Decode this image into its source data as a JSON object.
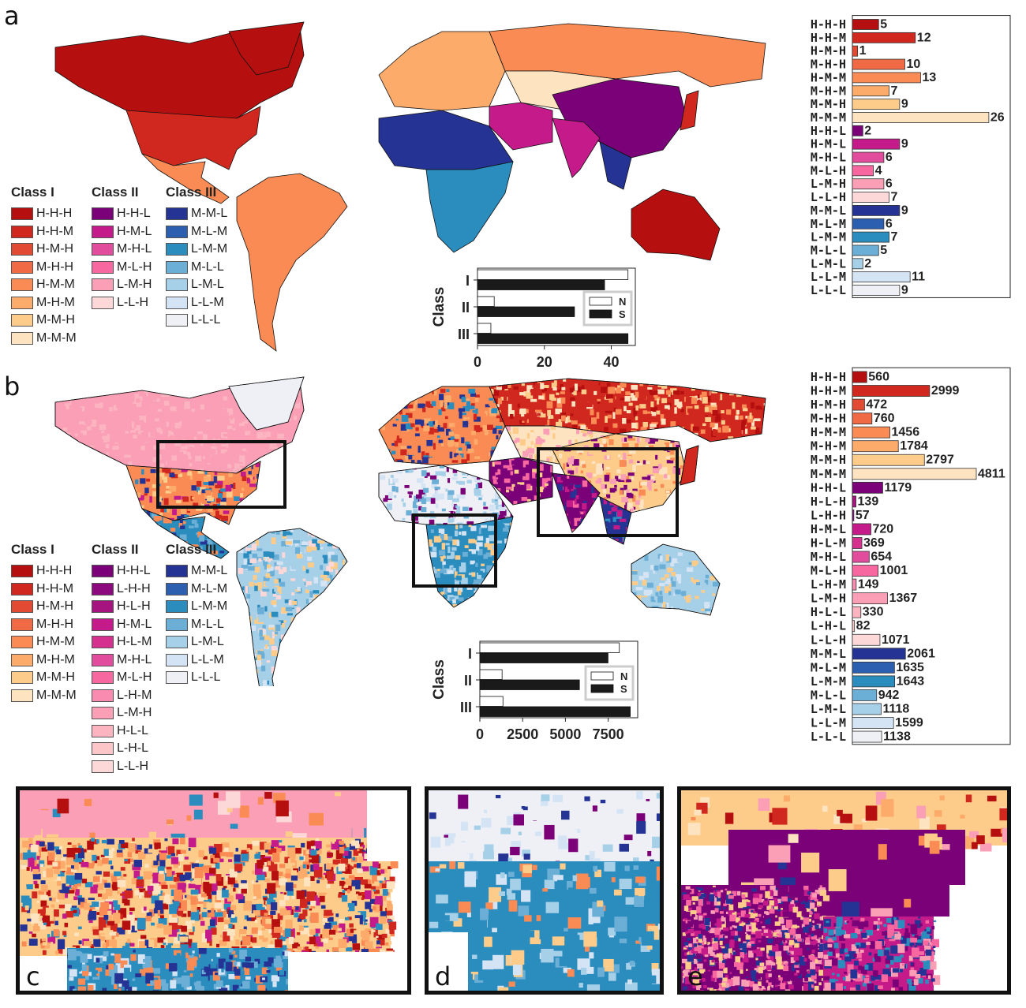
{
  "panels": {
    "a": "a",
    "b": "b",
    "c": "c",
    "d": "d",
    "e": "e"
  },
  "colors": {
    "H-H-H": "#b50f0f",
    "H-H-M": "#d0281e",
    "H-M-H": "#e34a33",
    "M-H-H": "#f06a45",
    "H-M-M": "#fb8b55",
    "M-H-M": "#fdab6a",
    "M-M-H": "#fdcc8a",
    "M-M-M": "#fee3c0",
    "H-H-L": "#7a0177",
    "L-H-H": "#8c0a7e",
    "H-L-H": "#a5147f",
    "H-M-L": "#c51b8a",
    "H-L-M": "#d6308f",
    "M-H-L": "#e14d9c",
    "M-L-H": "#f768a1",
    "L-H-M": "#f98ab0",
    "L-M-H": "#fa9fb5",
    "H-L-L": "#fbb4c0",
    "L-H-L": "#fcc5c8",
    "L-L-H": "#fdd8d8",
    "M-M-L": "#253494",
    "M-L-M": "#2c5fb0",
    "L-M-M": "#2b8cbe",
    "M-L-L": "#6baed6",
    "L-M-L": "#a6cfe8",
    "L-L-M": "#d4e4f4",
    "L-L-L": "#eef0f6"
  },
  "legend_a": {
    "class_i": {
      "title": "Class I",
      "items": [
        "H-H-H",
        "H-H-M",
        "H-M-H",
        "M-H-H",
        "H-M-M",
        "M-H-M",
        "M-M-H",
        "M-M-M"
      ]
    },
    "class_ii": {
      "title": "Class II",
      "items": [
        "H-H-L",
        "H-M-L",
        "M-H-L",
        "M-L-H",
        "L-M-H",
        "L-L-H"
      ]
    },
    "class_iii": {
      "title": "Class III",
      "items": [
        "M-M-L",
        "M-L-M",
        "L-M-M",
        "M-L-L",
        "L-M-L",
        "L-L-M",
        "L-L-L"
      ]
    }
  },
  "legend_b": {
    "class_i": {
      "title": "Class I",
      "items": [
        "H-H-H",
        "H-H-M",
        "H-M-H",
        "M-H-H",
        "H-M-M",
        "M-H-M",
        "M-M-H",
        "M-M-M"
      ]
    },
    "class_ii": {
      "title": "Class II",
      "items": [
        "H-H-L",
        "L-H-H",
        "H-L-H",
        "H-M-L",
        "H-L-M",
        "M-H-L",
        "M-L-H",
        "L-H-M",
        "L-M-H",
        "H-L-L",
        "L-H-L",
        "L-L-H"
      ]
    },
    "class_iii": {
      "title": "Class III",
      "items": [
        "M-M-L",
        "M-L-M",
        "L-M-M",
        "M-L-L",
        "L-M-L",
        "L-L-M",
        "L-L-L"
      ]
    }
  },
  "chart_data": [
    {
      "id": "a-counts",
      "type": "bar",
      "orientation": "horizontal",
      "categories": [
        "H-H-H",
        "H-H-M",
        "H-M-H",
        "M-H-H",
        "H-M-M",
        "M-H-M",
        "M-M-H",
        "M-M-M",
        "H-H-L",
        "H-M-L",
        "M-H-L",
        "M-L-H",
        "L-M-H",
        "L-L-H",
        "M-M-L",
        "M-L-M",
        "L-M-M",
        "M-L-L",
        "L-M-L",
        "L-L-M",
        "L-L-L"
      ],
      "values": [
        5,
        12,
        1,
        10,
        13,
        7,
        9,
        26,
        2,
        9,
        6,
        4,
        6,
        7,
        9,
        6,
        7,
        5,
        2,
        11,
        9
      ],
      "xlim": [
        0,
        30
      ]
    },
    {
      "id": "a-class-ns",
      "type": "bar",
      "orientation": "horizontal",
      "categories": [
        "I",
        "II",
        "III"
      ],
      "ylabel": "Class",
      "series": [
        {
          "name": "N",
          "values": [
            45,
            5,
            4
          ],
          "color": "#ffffff"
        },
        {
          "name": "S",
          "values": [
            38,
            29,
            45
          ],
          "color": "#1a1a1a"
        }
      ],
      "xticks": [
        0,
        20,
        40
      ],
      "xlim": [
        0,
        47.2
      ],
      "legend": "right"
    },
    {
      "id": "b-counts",
      "type": "bar",
      "orientation": "horizontal",
      "categories": [
        "H-H-H",
        "H-H-M",
        "H-M-H",
        "M-H-H",
        "H-M-M",
        "M-H-M",
        "M-M-H",
        "M-M-M",
        "H-H-L",
        "H-L-H",
        "L-H-H",
        "H-M-L",
        "H-L-M",
        "M-H-L",
        "M-L-H",
        "L-H-M",
        "L-M-H",
        "H-L-L",
        "L-H-L",
        "L-L-H",
        "M-M-L",
        "M-L-M",
        "L-M-M",
        "M-L-L",
        "L-M-L",
        "L-L-M",
        "L-L-L"
      ],
      "values": [
        560,
        2999,
        472,
        760,
        1456,
        1784,
        2797,
        4811,
        1179,
        139,
        57,
        720,
        369,
        654,
        1001,
        149,
        1367,
        330,
        82,
        1071,
        2061,
        1635,
        1643,
        942,
        1118,
        1599,
        1138
      ],
      "xlim": [
        0,
        6100
      ]
    },
    {
      "id": "b-class-ns",
      "type": "bar",
      "orientation": "horizontal",
      "categories": [
        "I",
        "II",
        "III"
      ],
      "ylabel": "Class",
      "series": [
        {
          "name": "N",
          "values": [
            8150,
            1300,
            1350
          ],
          "color": "#ffffff"
        },
        {
          "name": "S",
          "values": [
            7490,
            5820,
            8790
          ],
          "color": "#1a1a1a"
        }
      ],
      "xticks": [
        0,
        2500,
        5000,
        7500
      ],
      "xlim": [
        0,
        9225
      ],
      "legend": "right"
    }
  ]
}
